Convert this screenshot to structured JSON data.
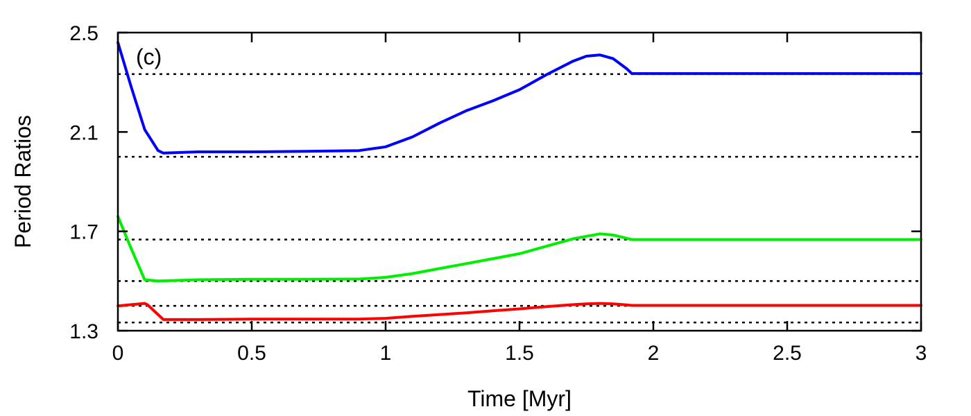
{
  "chart_data": {
    "type": "line",
    "title": "",
    "annotation": "(c)",
    "xlabel": "Time [Myr]",
    "ylabel": "Period Ratios",
    "xlim": [
      0,
      3
    ],
    "ylim": [
      1.3,
      2.5
    ],
    "xticks": [
      0,
      0.5,
      1,
      1.5,
      2,
      2.5,
      3
    ],
    "xtick_labels": [
      "0",
      "0.5",
      "1",
      "1.5",
      "2",
      "2.5",
      "3"
    ],
    "yticks": [
      1.3,
      1.7,
      2.1,
      2.5
    ],
    "ytick_labels": [
      "1.3",
      "1.7",
      "2.1",
      "2.5"
    ],
    "grid": false,
    "legend": "none",
    "reference_lines": [
      2.333,
      2.0,
      1.667,
      1.5,
      1.4,
      1.333
    ],
    "series": [
      {
        "color": "#0000ff",
        "x": [
          0,
          0.05,
          0.1,
          0.15,
          0.17,
          0.3,
          0.5,
          0.7,
          0.9,
          1.0,
          1.1,
          1.2,
          1.3,
          1.4,
          1.5,
          1.6,
          1.7,
          1.75,
          1.8,
          1.85,
          1.9,
          1.92,
          2.0,
          2.5,
          3.0
        ],
        "y": [
          2.46,
          2.28,
          2.11,
          2.025,
          2.015,
          2.02,
          2.02,
          2.022,
          2.025,
          2.04,
          2.08,
          2.135,
          2.185,
          2.225,
          2.27,
          2.33,
          2.385,
          2.405,
          2.41,
          2.395,
          2.355,
          2.335,
          2.335,
          2.335,
          2.335
        ]
      },
      {
        "color": "#00ee00",
        "x": [
          0,
          0.05,
          0.1,
          0.15,
          0.3,
          0.5,
          0.7,
          0.9,
          1.0,
          1.1,
          1.2,
          1.3,
          1.4,
          1.5,
          1.6,
          1.7,
          1.75,
          1.8,
          1.85,
          1.9,
          1.92,
          2.0,
          2.5,
          3.0
        ],
        "y": [
          1.76,
          1.63,
          1.505,
          1.5,
          1.505,
          1.507,
          1.507,
          1.508,
          1.515,
          1.53,
          1.55,
          1.57,
          1.59,
          1.61,
          1.64,
          1.67,
          1.68,
          1.69,
          1.685,
          1.672,
          1.667,
          1.667,
          1.667,
          1.667
        ]
      },
      {
        "color": "#ff0000",
        "x": [
          0,
          0.05,
          0.1,
          0.11,
          0.17,
          0.3,
          0.5,
          0.7,
          0.9,
          1.0,
          1.1,
          1.2,
          1.3,
          1.4,
          1.5,
          1.6,
          1.7,
          1.75,
          1.8,
          1.85,
          1.9,
          1.92,
          2.0,
          2.5,
          3.0
        ],
        "y": [
          1.4,
          1.405,
          1.41,
          1.405,
          1.345,
          1.345,
          1.347,
          1.347,
          1.347,
          1.35,
          1.358,
          1.365,
          1.372,
          1.38,
          1.388,
          1.397,
          1.405,
          1.408,
          1.41,
          1.408,
          1.404,
          1.402,
          1.402,
          1.402,
          1.402
        ]
      }
    ]
  }
}
